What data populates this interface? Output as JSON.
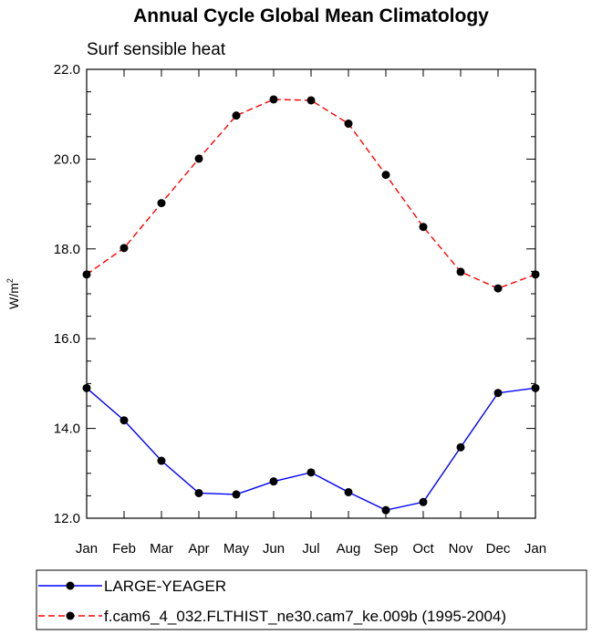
{
  "chart_data": {
    "type": "line",
    "title": "Annual Cycle Global Mean Climatology",
    "subtitle": "Surf sensible heat",
    "ylabel": "W/m",
    "ylabel_sup": "2",
    "ylim": [
      12.0,
      22.0
    ],
    "yticks": [
      "12.0",
      "14.0",
      "16.0",
      "18.0",
      "20.0",
      "22.0"
    ],
    "categories": [
      "Jan",
      "Feb",
      "Mar",
      "Apr",
      "May",
      "Jun",
      "Jul",
      "Aug",
      "Sep",
      "Oct",
      "Nov",
      "Dec",
      "Jan"
    ],
    "legend_placement": "bottom",
    "grid": false,
    "series": [
      {
        "name": "LARGE-YEAGER",
        "color": "#0000ff",
        "dash": "solid",
        "values": [
          14.9,
          14.18,
          13.28,
          12.56,
          12.53,
          12.82,
          13.02,
          12.58,
          12.18,
          12.36,
          13.58,
          14.79,
          14.9
        ]
      },
      {
        "name": "f.cam6_4_032.FLTHIST_ne30.cam7_ke.009b (1995-2004)",
        "color": "#ff0000",
        "dash": "dashed",
        "values": [
          17.43,
          18.02,
          19.02,
          20.01,
          20.97,
          21.33,
          21.31,
          20.79,
          19.65,
          18.49,
          17.49,
          17.12,
          17.43
        ]
      }
    ]
  }
}
